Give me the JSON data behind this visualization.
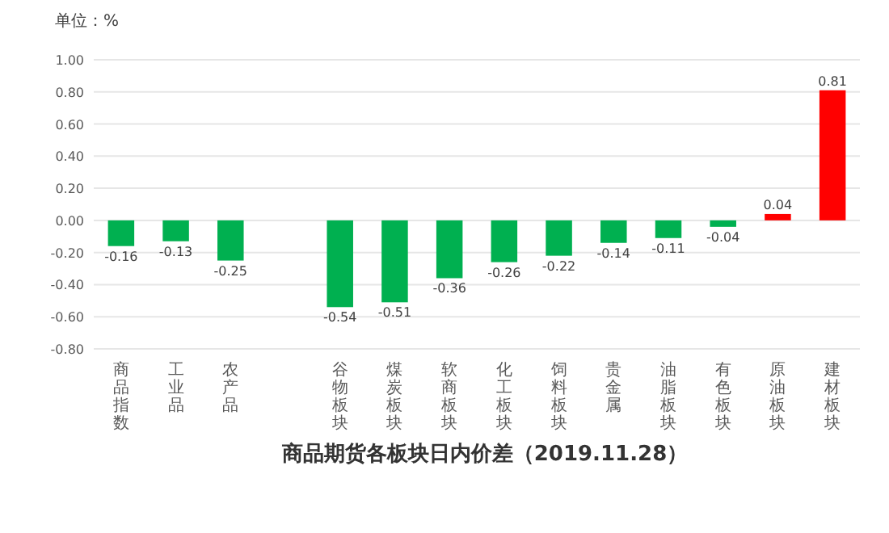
{
  "chart_data": {
    "type": "bar",
    "title": "商品期货各板块日内价差（2019.11.28）",
    "ylabel": "单位：%",
    "categories": [
      "商品指数",
      "工业品",
      "农产品",
      null,
      "谷物板块",
      "煤炭板块",
      "软商板块",
      "化工板块",
      "饲料板块",
      "贵金属",
      "油脂板块",
      "有色板块",
      "原油板块",
      "建材板块"
    ],
    "values": [
      -0.16,
      -0.13,
      -0.25,
      null,
      -0.54,
      -0.51,
      -0.36,
      -0.26,
      -0.22,
      -0.14,
      -0.11,
      -0.04,
      0.04,
      0.81
    ],
    "colors": [
      "#00b050",
      "#00b050",
      "#00b050",
      null,
      "#00b050",
      "#00b050",
      "#00b050",
      "#00b050",
      "#00b050",
      "#00b050",
      "#00b050",
      "#00b050",
      "#ff0000",
      "#ff0000"
    ],
    "ylim": [
      -0.8,
      1.0
    ],
    "yticks": [
      {
        "value": -0.8,
        "label": "-0.80"
      },
      {
        "value": -0.6,
        "label": "-0.60"
      },
      {
        "value": -0.4,
        "label": "-0.40"
      },
      {
        "value": -0.2,
        "label": "-0.20"
      },
      {
        "value": 0,
        "label": "0.00"
      },
      {
        "value": 0.2,
        "label": "0.20"
      },
      {
        "value": 0.4,
        "label": "0.40"
      },
      {
        "value": 0.6,
        "label": "0.60"
      },
      {
        "value": 0.8,
        "label": "0.80"
      },
      {
        "value": 1.0,
        "label": "1.00"
      }
    ],
    "grid": "y",
    "data_labels": true
  }
}
